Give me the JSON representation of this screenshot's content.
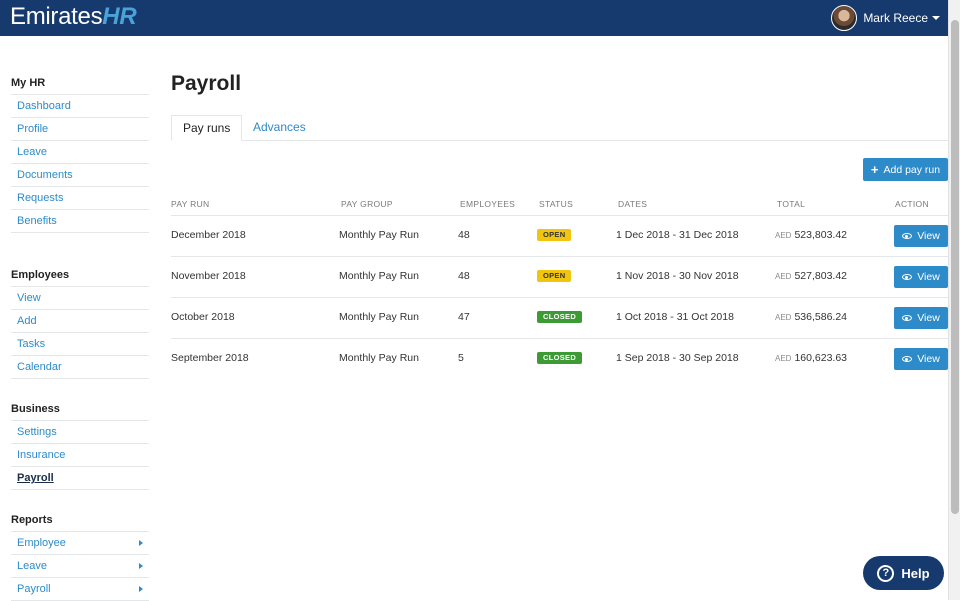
{
  "header": {
    "logo_main": "Emirates",
    "logo_accent": "HR",
    "user_name": "Mark Reece"
  },
  "sidebar": {
    "sections": [
      {
        "title": "My HR",
        "items": [
          {
            "label": "Dashboard"
          },
          {
            "label": "Profile"
          },
          {
            "label": "Leave"
          },
          {
            "label": "Documents"
          },
          {
            "label": "Requests"
          },
          {
            "label": "Benefits"
          }
        ]
      },
      {
        "title": "Employees",
        "items": [
          {
            "label": "View"
          },
          {
            "label": "Add"
          },
          {
            "label": "Tasks"
          },
          {
            "label": "Calendar"
          }
        ]
      },
      {
        "title": "Business",
        "items": [
          {
            "label": "Settings"
          },
          {
            "label": "Insurance"
          },
          {
            "label": "Payroll",
            "active": true
          }
        ]
      },
      {
        "title": "Reports",
        "items": [
          {
            "label": "Employee",
            "submenu": true
          },
          {
            "label": "Leave",
            "submenu": true
          },
          {
            "label": "Payroll",
            "submenu": true
          }
        ]
      }
    ]
  },
  "main": {
    "title": "Payroll",
    "tabs": [
      {
        "label": "Pay runs",
        "active": true
      },
      {
        "label": "Advances",
        "active": false
      }
    ],
    "add_button_label": "Add pay run",
    "columns": [
      "PAY RUN",
      "PAY GROUP",
      "EMPLOYEES",
      "STATUS",
      "DATES",
      "TOTAL",
      "ACTION"
    ],
    "rows": [
      {
        "pay_run": "December 2018",
        "pay_group": "Monthly Pay Run",
        "employees": "48",
        "status": "OPEN",
        "dates": "1 Dec 2018 - 31 Dec 2018",
        "currency": "AED",
        "total": "523,803.42",
        "action": "View"
      },
      {
        "pay_run": "November 2018",
        "pay_group": "Monthly Pay Run",
        "employees": "48",
        "status": "OPEN",
        "dates": "1 Nov 2018 - 30 Nov 2018",
        "currency": "AED",
        "total": "527,803.42",
        "action": "View"
      },
      {
        "pay_run": "October 2018",
        "pay_group": "Monthly Pay Run",
        "employees": "47",
        "status": "CLOSED",
        "dates": "1 Oct 2018 - 31 Oct 2018",
        "currency": "AED",
        "total": "536,586.24",
        "action": "View"
      },
      {
        "pay_run": "September 2018",
        "pay_group": "Monthly Pay Run",
        "employees": "5",
        "status": "CLOSED",
        "dates": "1 Sep 2018 - 30 Sep 2018",
        "currency": "AED",
        "total": "160,623.63",
        "action": "View"
      }
    ]
  },
  "help": {
    "label": "Help"
  },
  "colors": {
    "header": "#163a6e",
    "accent": "#2e8bc9",
    "open": "#f1c40f",
    "closed": "#3d9b35"
  },
  "icons": {
    "add": "plus-icon",
    "view": "eye-icon",
    "help": "question-icon",
    "user_menu": "caret-down-icon"
  }
}
